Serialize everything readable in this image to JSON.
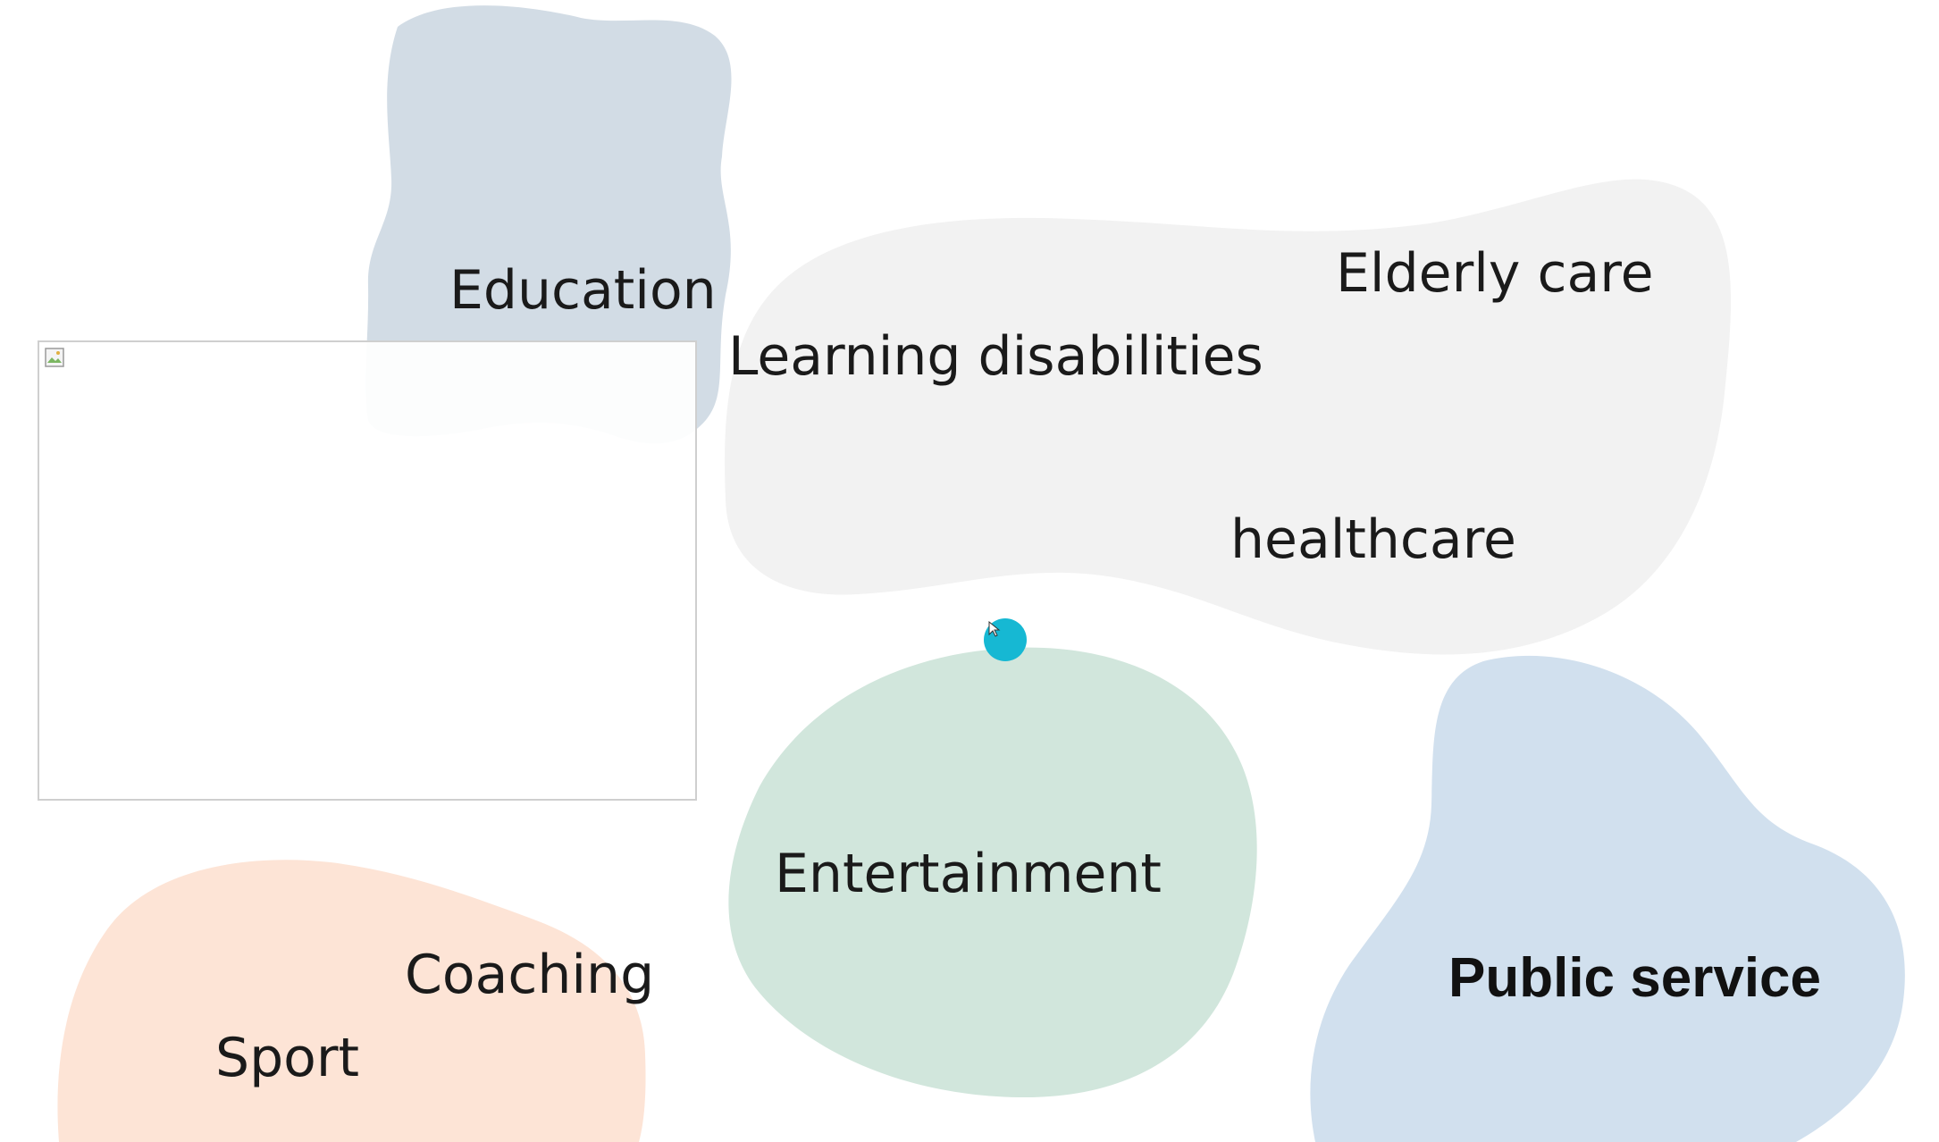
{
  "labels": {
    "education": "Education",
    "learning_disabilities": "Learning disabilities",
    "elderly_care": "Elderly care",
    "healthcare": "healthcare",
    "entertainment": "Entertainment",
    "coaching": "Coaching",
    "sport": "Sport",
    "public_service": "Public service"
  },
  "colors": {
    "education_blob": "#d2dce5",
    "care_blob": "#f2f2f2",
    "entertainment_blob": "#d1e6dc",
    "sport_blob": "#fde4d6",
    "public_service_blob": "#d1e0ee",
    "pointer": "#16b8d3"
  },
  "icons": {
    "broken_image": "broken-image-icon",
    "cursor": "cursor-arrow-icon"
  }
}
